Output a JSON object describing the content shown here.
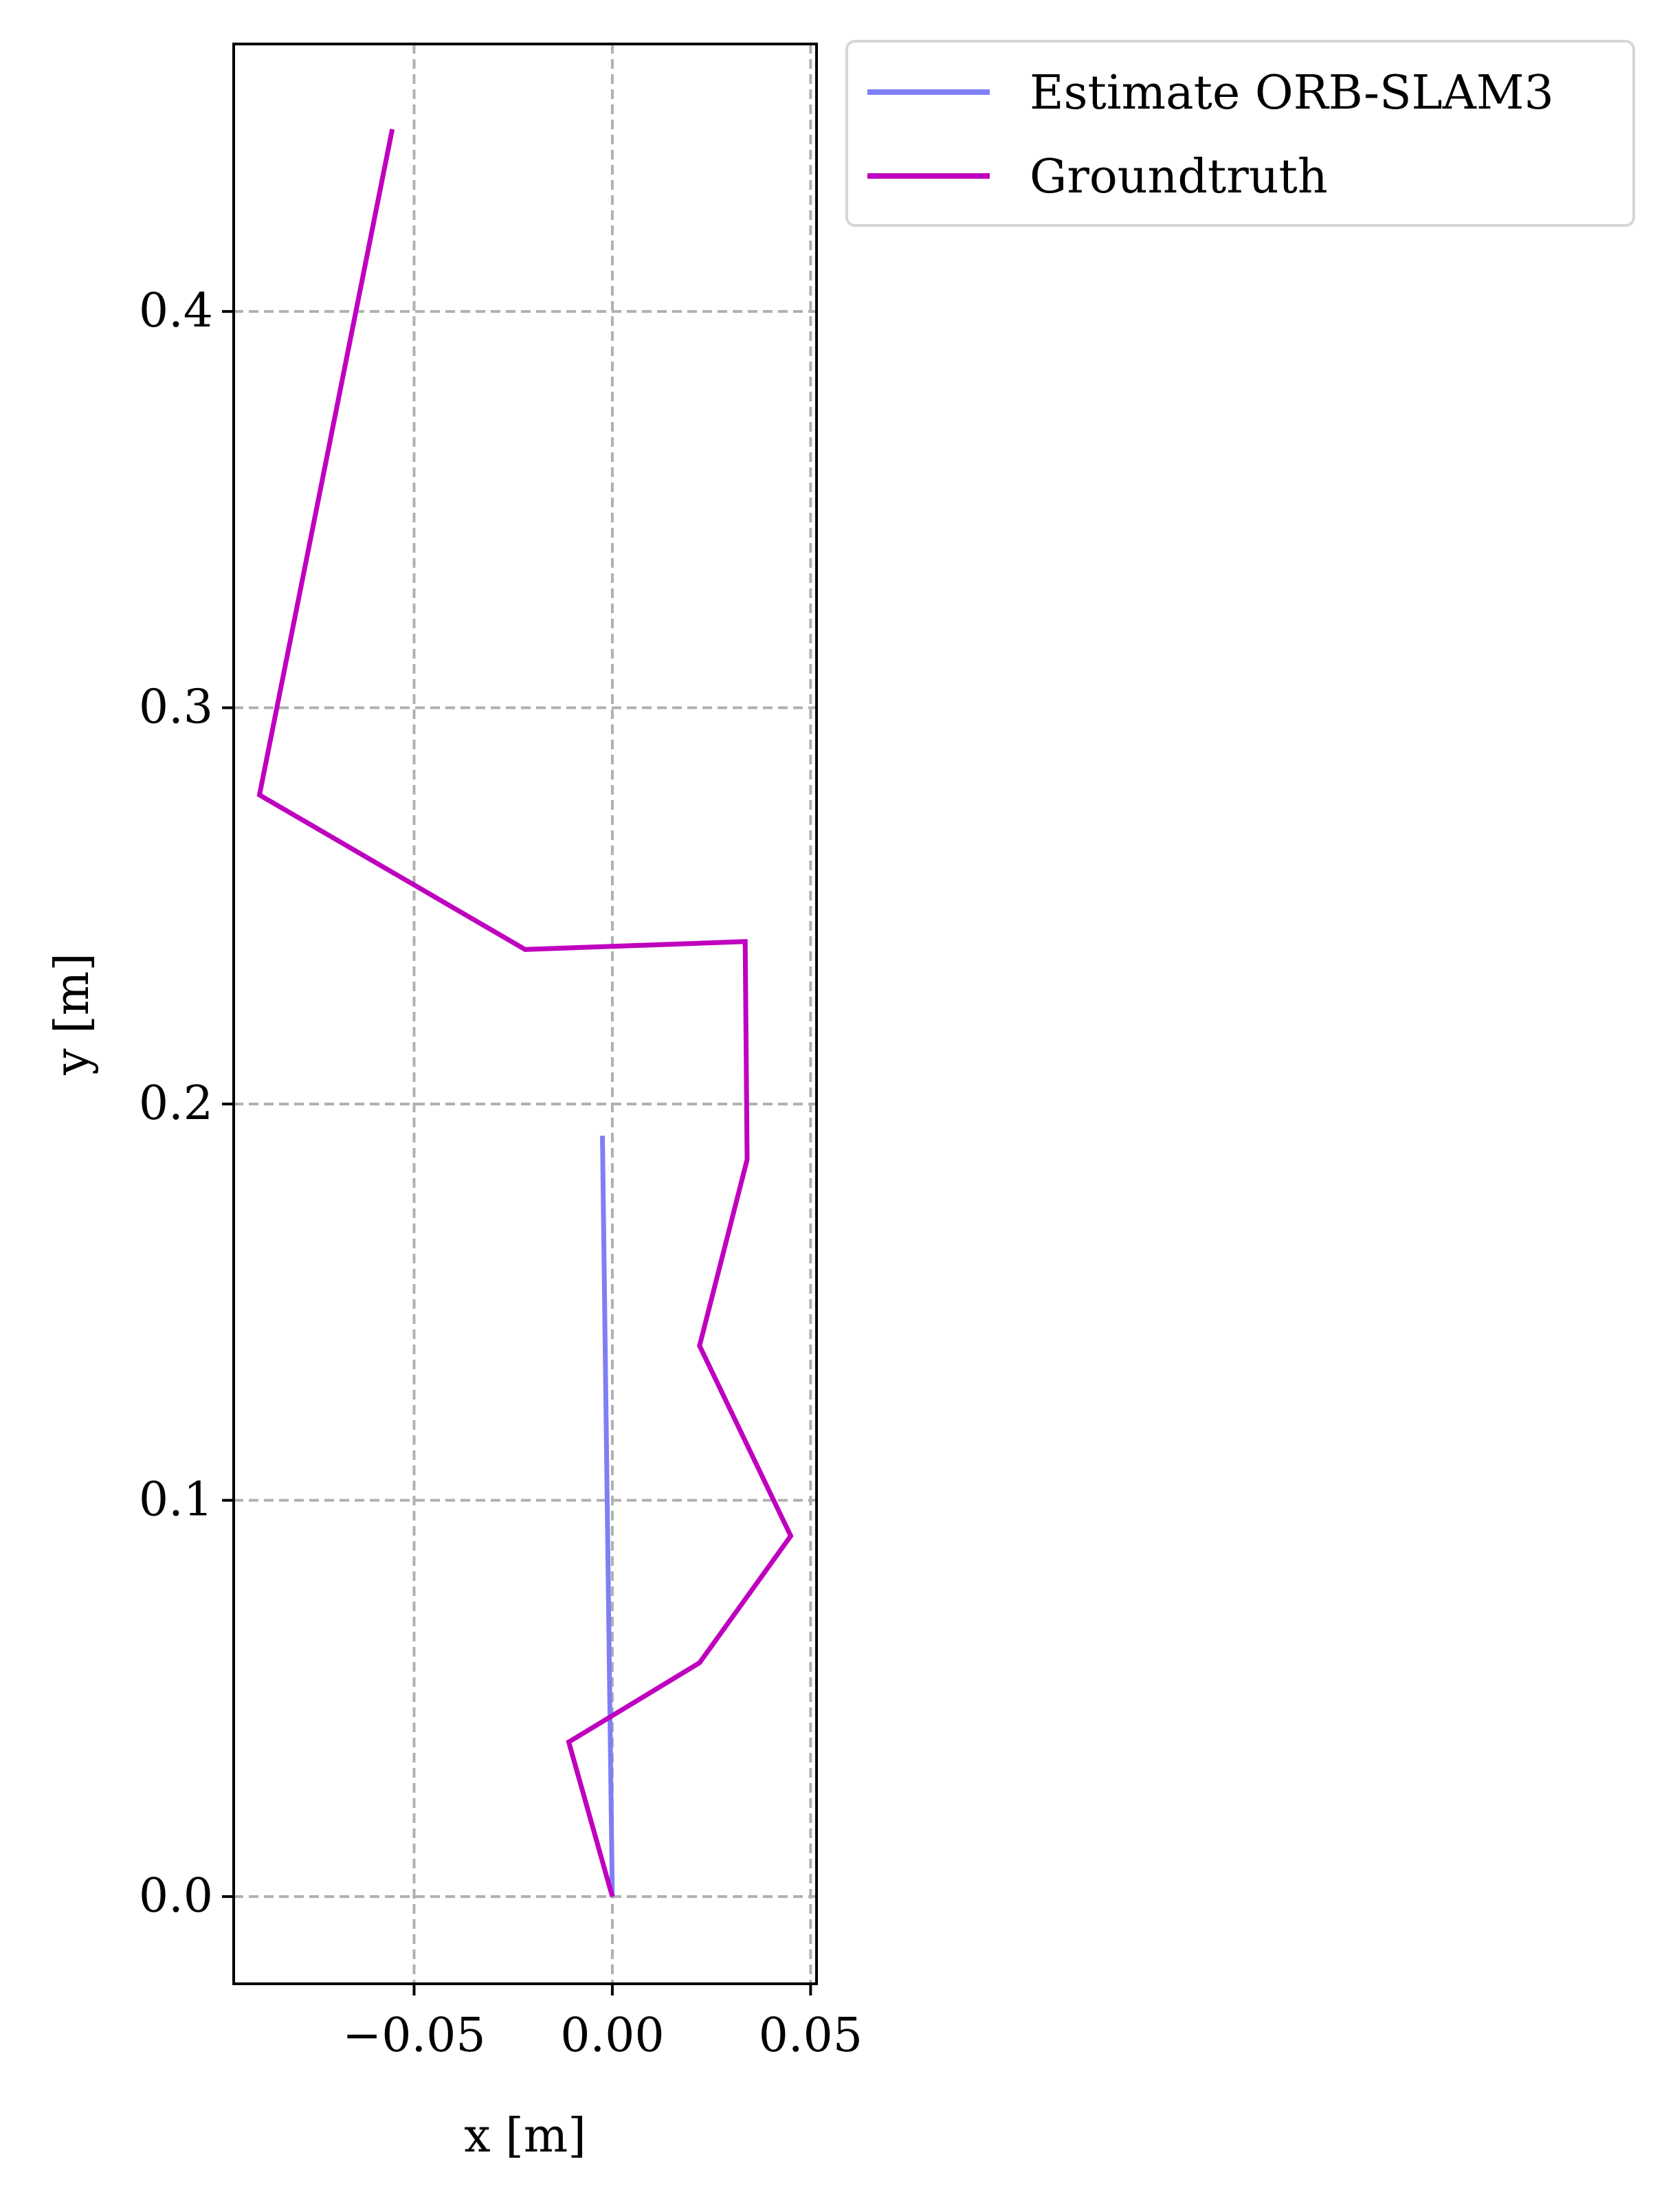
{
  "chart_data": {
    "type": "line",
    "xlabel": "x [m]",
    "ylabel": "y [m]",
    "xlim": [
      -0.0955,
      0.0515
    ],
    "ylim": [
      -0.022,
      0.4675
    ],
    "x_ticks": [
      -0.05,
      0.0,
      0.05
    ],
    "x_tick_labels": [
      "−0.05",
      "0.00",
      "0.05"
    ],
    "y_ticks": [
      0.0,
      0.1,
      0.2,
      0.3,
      0.4
    ],
    "y_tick_labels": [
      "0.0",
      "0.1",
      "0.2",
      "0.3",
      "0.4"
    ],
    "grid": true,
    "legend_position": "outside-top-right",
    "series": [
      {
        "name": "Estimate ORB-SLAM3",
        "color": "#7f7ff5",
        "points": [
          [
            0.0,
            0.0
          ],
          [
            -0.0025,
            0.192
          ]
        ]
      },
      {
        "name": "Groundtruth",
        "color": "#bf00bf",
        "points": [
          [
            0.0,
            0.0
          ],
          [
            -0.011,
            0.039
          ],
          [
            0.022,
            0.059
          ],
          [
            0.045,
            0.091
          ],
          [
            0.022,
            0.139
          ],
          [
            0.034,
            0.186
          ],
          [
            0.0335,
            0.241
          ],
          [
            -0.022,
            0.239
          ],
          [
            -0.089,
            0.278
          ],
          [
            -0.0555,
            0.446
          ]
        ]
      }
    ]
  }
}
